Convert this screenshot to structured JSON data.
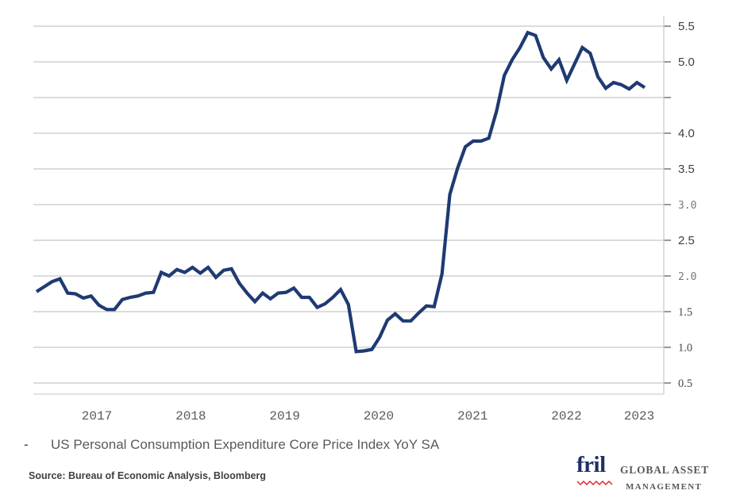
{
  "chart_data": {
    "type": "line",
    "title": "",
    "xlabel": "",
    "ylabel": "",
    "y_axis_side": "right",
    "ylim": [
      0.5,
      5.5
    ],
    "grid": true,
    "yticks": [
      {
        "value": 5.5,
        "label": "5.5",
        "style": "sans"
      },
      {
        "value": 5.0,
        "label": "5.0",
        "style": "sans"
      },
      {
        "value": 4.5,
        "label": "",
        "style": "sans"
      },
      {
        "value": 4.0,
        "label": "4.0",
        "style": "sans"
      },
      {
        "value": 3.5,
        "label": "3.5",
        "style": "sans"
      },
      {
        "value": 3.0,
        "label": "3.0",
        "style": "mono"
      },
      {
        "value": 2.5,
        "label": "2.5",
        "style": "sans"
      },
      {
        "value": 2.0,
        "label": "2.0",
        "style": "mono"
      },
      {
        "value": 1.5,
        "label": "1.5",
        "style": "serif"
      },
      {
        "value": 1.0,
        "label": "1.0",
        "style": "serif"
      },
      {
        "value": 0.5,
        "label": "0.5",
        "style": "serif"
      }
    ],
    "xticks": [
      {
        "year": 2017,
        "label": "2017"
      },
      {
        "year": 2018,
        "label": "2018"
      },
      {
        "year": 2019,
        "label": "2019"
      },
      {
        "year": 2020,
        "label": "2020"
      },
      {
        "year": 2021,
        "label": "2021"
      },
      {
        "year": 2022,
        "label": "2022"
      },
      {
        "year": 2023,
        "label": "2023"
      }
    ],
    "x_start": "2016-06",
    "x_end": "2023-01",
    "series": [
      {
        "name": "US Personal Consumption Expenditure Core Price Index YoY SA",
        "color": "#1f3a73",
        "values": [
          1.78,
          1.85,
          1.92,
          1.96,
          1.76,
          1.75,
          1.69,
          1.72,
          1.59,
          1.53,
          1.53,
          1.67,
          1.7,
          1.72,
          1.76,
          1.77,
          2.05,
          2.0,
          2.09,
          2.05,
          2.12,
          2.04,
          2.12,
          1.98,
          2.08,
          2.1,
          1.9,
          1.76,
          1.64,
          1.76,
          1.68,
          1.76,
          1.77,
          1.83,
          1.7,
          1.7,
          1.56,
          1.61,
          1.7,
          1.81,
          1.6,
          0.94,
          0.95,
          0.97,
          1.14,
          1.38,
          1.47,
          1.37,
          1.37,
          1.48,
          1.58,
          1.57,
          2.03,
          3.14,
          3.51,
          3.81,
          3.89,
          3.89,
          3.93,
          4.31,
          4.81,
          5.03,
          5.2,
          5.41,
          5.37,
          5.06,
          4.9,
          5.03,
          4.74,
          4.97,
          5.2,
          5.12,
          4.79,
          4.63,
          4.71,
          4.68,
          4.62,
          4.71,
          4.64
        ]
      }
    ]
  },
  "legend": {
    "marker": "-",
    "label": "US Personal Consumption Expenditure Core Price Index YoY SA"
  },
  "source": "Source: Bureau of Economic Analysis, Bloomberg",
  "logo": {
    "brand": "fril",
    "line1": "GLOBAL  ASSET",
    "line2": "MANAGEMENT",
    "brand_color": "#1f2f66",
    "wave_color": "#e02020"
  }
}
